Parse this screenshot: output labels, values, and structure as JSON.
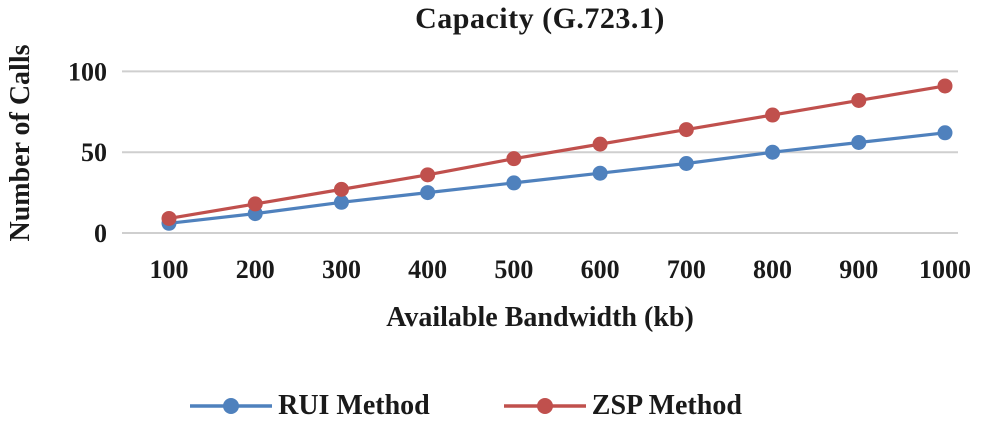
{
  "chart_data": {
    "type": "line",
    "title": "Capacity (G.723.1)",
    "xlabel": "Available Bandwidth (kb)",
    "ylabel": "Number of Calls",
    "categories": [
      100,
      200,
      300,
      400,
      500,
      600,
      700,
      800,
      900,
      1000
    ],
    "series": [
      {
        "name": "RUI Method",
        "color": "#4F81BD",
        "values": [
          6,
          12,
          19,
          25,
          31,
          37,
          43,
          50,
          56,
          62
        ]
      },
      {
        "name": "ZSP Method",
        "color": "#C0504D",
        "values": [
          9,
          18,
          27,
          36,
          46,
          55,
          64,
          73,
          82,
          91
        ]
      }
    ],
    "yticks": [
      0,
      50,
      100
    ],
    "ylim": [
      0,
      112
    ],
    "grid": true,
    "grid_color": "#cfcfcf",
    "legend_position": "bottom"
  }
}
